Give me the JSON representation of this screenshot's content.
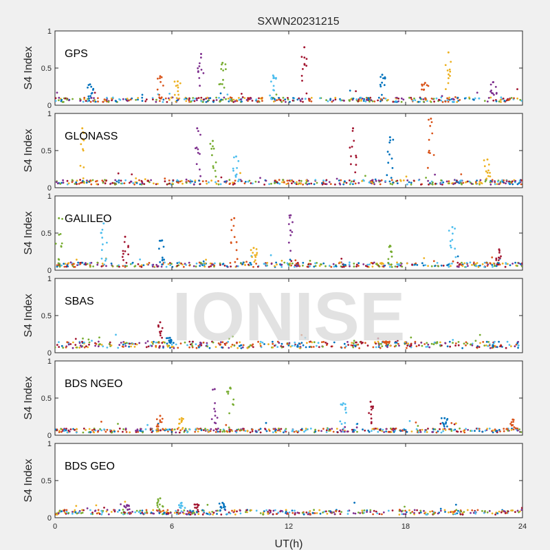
{
  "title": "SXWN20231215",
  "watermark": "IONISE",
  "chart_data": {
    "type": "scatter",
    "title": "SXWN20231215",
    "xlabel": "UT(h)",
    "ylabel": "S4 Index",
    "xlim": [
      0,
      24
    ],
    "ylim": [
      0,
      1
    ],
    "xticks": [
      0,
      6,
      12,
      18,
      24
    ],
    "yticks": [
      0,
      0.5,
      1
    ],
    "series_colors": [
      "#0072BD",
      "#D95319",
      "#EDB120",
      "#7E2F8E",
      "#77AC30",
      "#4DBEEE",
      "#A2142F"
    ],
    "panels": [
      {
        "name": "GPS",
        "baseline": 0.07,
        "peaks": [
          {
            "x": 1.8,
            "y": 0.28
          },
          {
            "x": 5.4,
            "y": 0.39
          },
          {
            "x": 6.3,
            "y": 0.32
          },
          {
            "x": 7.5,
            "y": 0.69
          },
          {
            "x": 8.6,
            "y": 0.57
          },
          {
            "x": 11.2,
            "y": 0.4
          },
          {
            "x": 12.8,
            "y": 0.78
          },
          {
            "x": 16.8,
            "y": 0.41
          },
          {
            "x": 19.0,
            "y": 0.3
          },
          {
            "x": 20.2,
            "y": 0.71
          },
          {
            "x": 22.5,
            "y": 0.31
          }
        ]
      },
      {
        "name": "GLONASS",
        "baseline": 0.07,
        "peaks": [
          {
            "x": 1.4,
            "y": 0.8
          },
          {
            "x": 7.3,
            "y": 0.8
          },
          {
            "x": 8.1,
            "y": 0.63
          },
          {
            "x": 9.3,
            "y": 0.42
          },
          {
            "x": 15.3,
            "y": 0.8
          },
          {
            "x": 17.2,
            "y": 0.68
          },
          {
            "x": 19.3,
            "y": 0.93
          },
          {
            "x": 22.2,
            "y": 0.38
          }
        ]
      },
      {
        "name": "GALILEO",
        "baseline": 0.07,
        "peaks": [
          {
            "x": 0.2,
            "y": 0.7
          },
          {
            "x": 2.5,
            "y": 0.63
          },
          {
            "x": 3.6,
            "y": 0.45
          },
          {
            "x": 5.5,
            "y": 0.4
          },
          {
            "x": 9.2,
            "y": 0.7
          },
          {
            "x": 10.2,
            "y": 0.3
          },
          {
            "x": 12.1,
            "y": 0.74
          },
          {
            "x": 17.2,
            "y": 0.33
          },
          {
            "x": 20.4,
            "y": 0.58
          },
          {
            "x": 22.8,
            "y": 0.28
          }
        ]
      },
      {
        "name": "SBAS",
        "baseline": 0.1,
        "peaks": [
          {
            "x": 5.4,
            "y": 0.41
          },
          {
            "x": 5.9,
            "y": 0.2
          },
          {
            "x": 17.0,
            "y": 0.15
          }
        ]
      },
      {
        "name": "BDS NGEO",
        "baseline": 0.06,
        "peaks": [
          {
            "x": 5.4,
            "y": 0.26
          },
          {
            "x": 6.5,
            "y": 0.23
          },
          {
            "x": 8.2,
            "y": 0.62
          },
          {
            "x": 9.0,
            "y": 0.64
          },
          {
            "x": 14.8,
            "y": 0.43
          },
          {
            "x": 16.2,
            "y": 0.45
          },
          {
            "x": 20.0,
            "y": 0.23
          },
          {
            "x": 23.5,
            "y": 0.21
          }
        ]
      },
      {
        "name": "BDS GEO",
        "baseline": 0.07,
        "peaks": [
          {
            "x": 3.7,
            "y": 0.17
          },
          {
            "x": 5.4,
            "y": 0.26
          },
          {
            "x": 6.5,
            "y": 0.2
          },
          {
            "x": 7.3,
            "y": 0.18
          },
          {
            "x": 8.6,
            "y": 0.2
          }
        ]
      }
    ]
  }
}
